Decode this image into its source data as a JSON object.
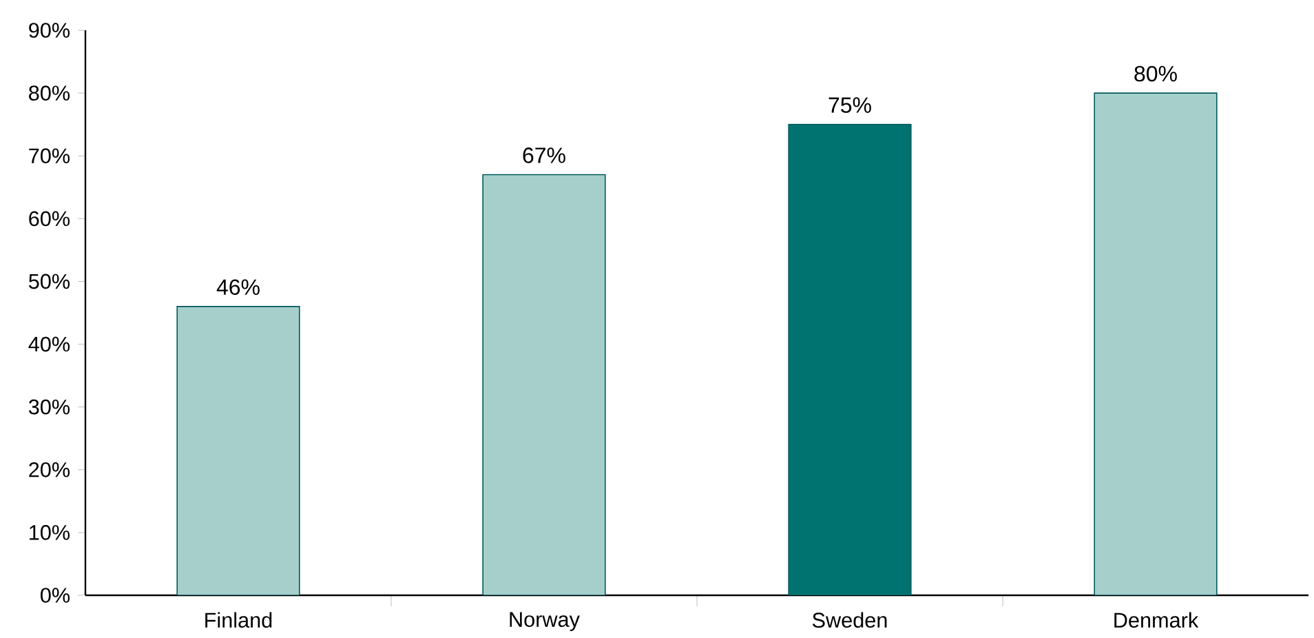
{
  "chart_data": {
    "type": "bar",
    "categories": [
      "Finland",
      "Norway",
      "Sweden",
      "Denmark"
    ],
    "values": [
      46,
      67,
      75,
      80
    ],
    "colors": [
      "#a6cfcc",
      "#a6cfcc",
      "#007370",
      "#a6cfcc"
    ],
    "value_labels": [
      "46%",
      "67%",
      "75%",
      "80%"
    ],
    "ylim": [
      0,
      90
    ],
    "yticks": [
      {
        "value": 0,
        "label": "0%"
      },
      {
        "value": 10,
        "label": "10%"
      },
      {
        "value": 20,
        "label": "20%"
      },
      {
        "value": 30,
        "label": "30%"
      },
      {
        "value": 40,
        "label": "40%"
      },
      {
        "value": 50,
        "label": "50%"
      },
      {
        "value": 60,
        "label": "60%"
      },
      {
        "value": 70,
        "label": "70%"
      },
      {
        "value": 80,
        "label": "80%"
      },
      {
        "value": 90,
        "label": "90%"
      }
    ],
    "grid": false
  }
}
